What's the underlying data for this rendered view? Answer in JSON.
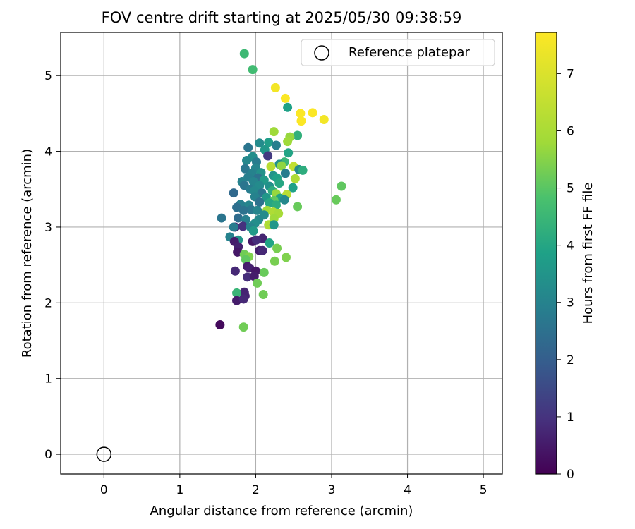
{
  "chart_data": {
    "type": "scatter",
    "title": "FOV centre drift starting at 2025/05/30 09:38:59",
    "xlabel": "Angular distance from reference (arcmin)",
    "ylabel": "Rotation from reference (arcmin)",
    "xlim": [
      -0.57,
      5.25
    ],
    "ylim": [
      -0.26,
      5.57
    ],
    "xticks": [
      0,
      1,
      2,
      3,
      4,
      5
    ],
    "yticks": [
      0,
      1,
      2,
      3,
      4,
      5
    ],
    "grid": true,
    "legend": {
      "placement": "top-right",
      "label": "Reference platepar",
      "marker": "open-circle"
    },
    "reference_point": {
      "x": 0,
      "y": 0
    },
    "colorbar": {
      "label": "Hours from first FF file",
      "colormap": "viridis",
      "range": [
        0,
        7.72
      ],
      "ticks": [
        0,
        1,
        2,
        3,
        4,
        5,
        6,
        7
      ]
    },
    "points": [
      [
        1.85,
        5.29,
        5.2
      ],
      [
        1.96,
        5.08,
        5.3
      ],
      [
        2.26,
        4.84,
        7.6
      ],
      [
        2.39,
        4.7,
        7.7
      ],
      [
        2.42,
        4.58,
        4.4
      ],
      [
        2.59,
        4.5,
        7.7
      ],
      [
        2.75,
        4.51,
        7.7
      ],
      [
        2.9,
        4.42,
        7.6
      ],
      [
        2.6,
        4.4,
        7.7
      ],
      [
        2.24,
        4.26,
        6.6
      ],
      [
        2.55,
        4.21,
        4.9
      ],
      [
        2.45,
        4.19,
        6.5
      ],
      [
        2.42,
        4.13,
        6.6
      ],
      [
        2.17,
        4.12,
        4.3
      ],
      [
        2.05,
        4.11,
        3.7
      ],
      [
        2.27,
        4.08,
        3.3
      ],
      [
        1.9,
        4.05,
        3.0
      ],
      [
        2.12,
        4.02,
        4.1
      ],
      [
        2.43,
        3.98,
        4.5
      ],
      [
        2.16,
        3.94,
        1.3
      ],
      [
        1.96,
        3.93,
        3.8
      ],
      [
        1.88,
        3.88,
        3.6
      ],
      [
        2.01,
        3.86,
        3.2
      ],
      [
        2.38,
        3.86,
        5.1
      ],
      [
        2.31,
        3.83,
        3.9
      ],
      [
        2.2,
        3.8,
        6.9
      ],
      [
        2.34,
        3.81,
        6.4
      ],
      [
        2.5,
        3.8,
        7.0
      ],
      [
        1.86,
        3.77,
        3.1
      ],
      [
        2.0,
        3.78,
        3.5
      ],
      [
        2.57,
        3.76,
        3.7
      ],
      [
        2.62,
        3.75,
        4.8
      ],
      [
        1.95,
        3.71,
        3.4
      ],
      [
        2.07,
        3.72,
        3.9
      ],
      [
        2.39,
        3.71,
        3.2
      ],
      [
        2.23,
        3.68,
        4.0
      ],
      [
        1.9,
        3.66,
        3.3
      ],
      [
        2.03,
        3.65,
        2.9
      ],
      [
        2.28,
        3.65,
        4.4
      ],
      [
        2.52,
        3.64,
        6.8
      ],
      [
        2.11,
        3.62,
        4.2
      ],
      [
        1.82,
        3.6,
        3.4
      ],
      [
        1.97,
        3.6,
        3.5
      ],
      [
        2.31,
        3.58,
        4.6
      ],
      [
        1.85,
        3.55,
        3.0
      ],
      [
        2.05,
        3.55,
        3.7
      ],
      [
        2.18,
        3.54,
        3.9
      ],
      [
        2.49,
        3.52,
        4.4
      ],
      [
        1.93,
        3.5,
        3.2
      ],
      [
        1.98,
        3.48,
        3.6
      ],
      [
        2.22,
        3.48,
        4.8
      ],
      [
        3.13,
        3.54,
        5.8
      ],
      [
        1.71,
        3.45,
        2.6
      ],
      [
        2.08,
        3.45,
        3.0
      ],
      [
        2.27,
        3.44,
        6.5
      ],
      [
        2.41,
        3.43,
        6.9
      ],
      [
        1.99,
        3.4,
        3.4
      ],
      [
        2.14,
        3.39,
        4.1
      ],
      [
        2.32,
        3.38,
        4.5
      ],
      [
        2.24,
        3.35,
        5.8
      ],
      [
        2.38,
        3.36,
        3.6
      ],
      [
        3.06,
        3.36,
        5.9
      ],
      [
        2.05,
        3.33,
        2.9
      ],
      [
        2.18,
        3.32,
        4.6
      ],
      [
        1.8,
        3.3,
        3.3
      ],
      [
        1.91,
        3.29,
        3.5
      ],
      [
        2.27,
        3.29,
        4.8
      ],
      [
        2.55,
        3.27,
        5.9
      ],
      [
        1.75,
        3.26,
        2.8
      ],
      [
        1.94,
        3.23,
        3.1
      ],
      [
        2.02,
        3.22,
        3.5
      ],
      [
        2.15,
        3.22,
        6.6
      ],
      [
        1.84,
        3.22,
        2.9
      ],
      [
        2.23,
        3.2,
        6.8
      ],
      [
        2.3,
        3.18,
        6.7
      ],
      [
        2.11,
        3.16,
        3.7
      ],
      [
        1.55,
        3.12,
        3.0
      ],
      [
        1.77,
        3.12,
        2.7
      ],
      [
        1.87,
        3.1,
        3.3
      ],
      [
        2.04,
        3.1,
        3.6
      ],
      [
        2.24,
        3.11,
        6.6
      ],
      [
        1.99,
        3.05,
        3.8
      ],
      [
        2.17,
        3.03,
        6.8
      ],
      [
        2.24,
        3.03,
        4.1
      ],
      [
        1.73,
        3.0,
        0.7
      ],
      [
        1.83,
        3.01,
        1.1
      ],
      [
        1.93,
        3.0,
        3.5
      ],
      [
        1.71,
        3.0,
        3.2
      ],
      [
        1.97,
        2.95,
        4.2
      ],
      [
        1.66,
        2.87,
        3.4
      ],
      [
        2.09,
        2.85,
        0.8
      ],
      [
        1.77,
        2.83,
        4.0
      ],
      [
        1.72,
        2.81,
        0.6
      ],
      [
        1.96,
        2.81,
        0.5
      ],
      [
        2.01,
        2.83,
        1.0
      ],
      [
        2.18,
        2.79,
        4.5
      ],
      [
        1.77,
        2.74,
        0.7
      ],
      [
        2.28,
        2.72,
        6.1
      ],
      [
        2.05,
        2.69,
        0.6
      ],
      [
        2.09,
        2.69,
        0.9
      ],
      [
        1.76,
        2.67,
        0.5
      ],
      [
        1.85,
        2.64,
        6.0
      ],
      [
        1.91,
        2.61,
        6.2
      ],
      [
        2.4,
        2.6,
        6.2
      ],
      [
        1.87,
        2.57,
        5.8
      ],
      [
        2.25,
        2.55,
        6.1
      ],
      [
        1.89,
        2.48,
        0.6
      ],
      [
        1.92,
        2.46,
        0.7
      ],
      [
        1.73,
        2.42,
        0.9
      ],
      [
        2.0,
        2.42,
        0.5
      ],
      [
        2.11,
        2.4,
        5.9
      ],
      [
        1.89,
        2.34,
        1.0
      ],
      [
        1.98,
        2.35,
        0.6
      ],
      [
        2.02,
        2.26,
        6.0
      ],
      [
        1.85,
        2.14,
        0.8
      ],
      [
        1.75,
        2.13,
        5.1
      ],
      [
        2.1,
        2.11,
        6.0
      ],
      [
        1.86,
        2.09,
        0.8
      ],
      [
        1.75,
        2.03,
        0.6
      ],
      [
        1.84,
        2.05,
        0.9
      ],
      [
        1.53,
        1.71,
        0.2
      ],
      [
        1.84,
        1.68,
        6.0
      ]
    ]
  }
}
